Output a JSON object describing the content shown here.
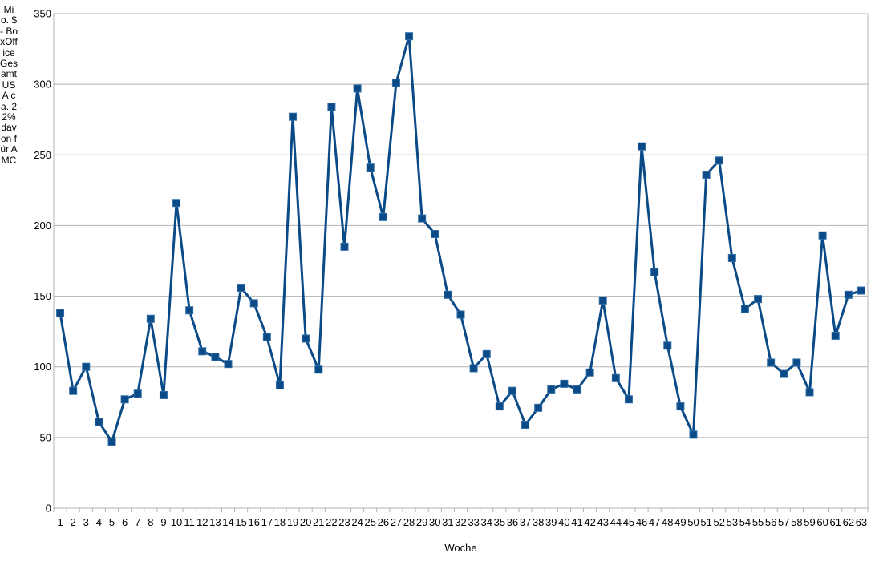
{
  "chart_data": {
    "type": "line",
    "title": "",
    "xlabel": "Woche",
    "ylabel": "Mio. $ - BoxOffice Gesamt USA ca. 22% davon für AMC",
    "ylim": [
      0,
      350
    ],
    "yticks": [
      0,
      50,
      100,
      150,
      200,
      250,
      300,
      350
    ],
    "grid": true,
    "legend": "none",
    "color": "#0a4a86",
    "x": [
      1,
      2,
      3,
      4,
      5,
      6,
      7,
      8,
      9,
      10,
      11,
      12,
      13,
      14,
      15,
      16,
      17,
      18,
      19,
      20,
      21,
      22,
      23,
      24,
      25,
      26,
      27,
      28,
      29,
      30,
      31,
      32,
      33,
      34,
      35,
      36,
      37,
      38,
      39,
      40,
      41,
      42,
      43,
      44,
      45,
      46,
      47,
      48,
      49,
      50,
      51,
      52,
      53,
      54,
      55,
      56,
      57,
      58,
      59,
      60,
      61,
      62,
      63
    ],
    "series": [
      {
        "values": [
          138,
          83,
          100,
          61,
          47,
          77,
          81,
          134,
          80,
          216,
          140,
          111,
          107,
          102,
          156,
          145,
          121,
          87,
          277,
          120,
          98,
          284,
          185,
          297,
          241,
          206,
          301,
          334,
          205,
          194,
          151,
          137,
          99,
          109,
          72,
          83,
          59,
          71,
          84,
          88,
          84,
          96,
          147,
          92,
          77,
          256,
          167,
          115,
          72,
          52,
          236,
          246,
          177,
          141,
          148,
          103,
          95,
          103,
          82,
          193,
          122,
          151,
          154
        ]
      }
    ]
  }
}
